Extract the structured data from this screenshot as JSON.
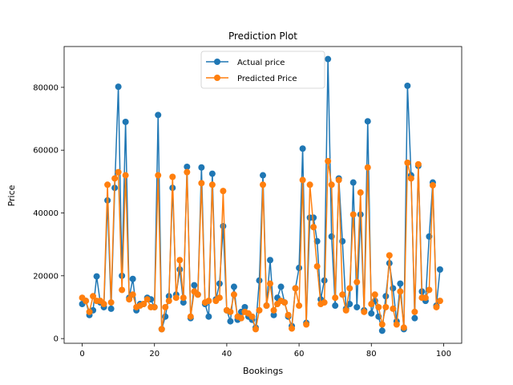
{
  "chart_data": {
    "type": "line",
    "title": "Prediction Plot",
    "xlabel": "Bookings",
    "ylabel": "Price",
    "xlim": [
      -5,
      105
    ],
    "ylim": [
      -1500,
      93000
    ],
    "xticks": [
      0,
      20,
      40,
      60,
      80,
      100
    ],
    "yticks": [
      0,
      20000,
      40000,
      60000,
      80000
    ],
    "legend_position": "top-center",
    "grid": false,
    "series": [
      {
        "name": "Actual price",
        "color": "#1f77b4",
        "marker": "circle",
        "values": [
          11000,
          12000,
          7500,
          9000,
          19800,
          11500,
          10000,
          44000,
          9500,
          48000,
          80200,
          20000,
          69000,
          13000,
          19000,
          9000,
          11000,
          11000,
          13000,
          12500,
          10000,
          71200,
          3000,
          7000,
          13500,
          48000,
          14000,
          22000,
          11500,
          54700,
          6500,
          17000,
          14000,
          54500,
          11000,
          7000,
          52500,
          12500,
          17500,
          35800,
          9000,
          5500,
          16500,
          6000,
          8500,
          10000,
          7000,
          6000,
          3500,
          18500,
          52000,
          10500,
          25000,
          7500,
          13000,
          16500,
          11500,
          7000,
          4000,
          16000,
          22500,
          60500,
          5000,
          38500,
          38500,
          31000,
          12500,
          18500,
          89000,
          32500,
          10500,
          51000,
          31000,
          9500,
          11000,
          49700,
          10000,
          39500,
          9000,
          69200,
          8000,
          12000,
          7000,
          2500,
          13500,
          24000,
          16000,
          5500,
          17500,
          3000,
          80500,
          52000,
          6500,
          55000,
          15000,
          12000,
          32500,
          49700,
          10500,
          22000
        ]
      },
      {
        "name": "Predicted Price",
        "color": "#ff7f0e",
        "marker": "circle",
        "values": [
          13000,
          12000,
          8500,
          13500,
          12000,
          12000,
          11000,
          49000,
          11500,
          51000,
          53000,
          15500,
          52000,
          12500,
          14000,
          10000,
          10500,
          11000,
          12500,
          10000,
          10000,
          52000,
          3000,
          10000,
          12000,
          51500,
          13000,
          25000,
          13000,
          53000,
          7000,
          15000,
          14000,
          49500,
          11500,
          12000,
          49000,
          12000,
          13000,
          47000,
          9000,
          8500,
          14000,
          7000,
          6500,
          8500,
          8000,
          7000,
          3000,
          9000,
          49000,
          10500,
          17500,
          9000,
          11000,
          12000,
          11500,
          7500,
          3200,
          16000,
          10500,
          50500,
          4500,
          49000,
          35500,
          23000,
          11000,
          11500,
          56500,
          49000,
          13000,
          50500,
          14000,
          9000,
          16000,
          39500,
          18000,
          46500,
          8500,
          54500,
          11000,
          14000,
          10000,
          4500,
          10000,
          26500,
          9500,
          4500,
          15000,
          3500,
          56000,
          51000,
          8500,
          55500,
          13000,
          13000,
          15500,
          48800,
          10000,
          12000
        ]
      }
    ]
  }
}
